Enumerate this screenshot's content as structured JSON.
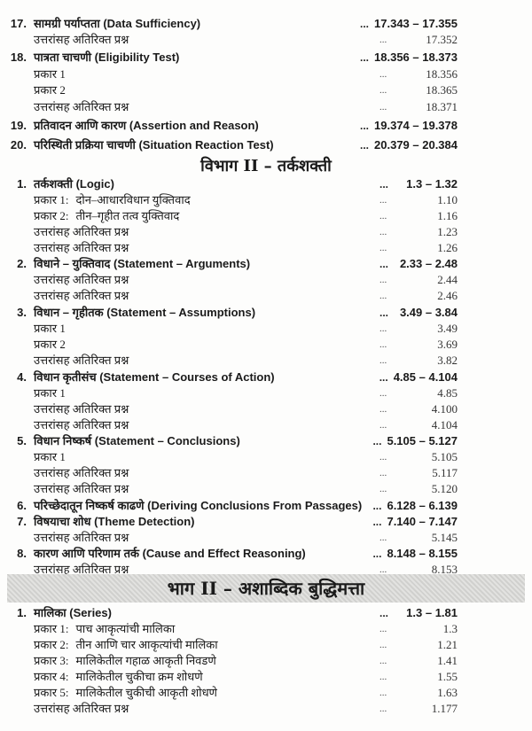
{
  "rows": [
    {
      "type": "main",
      "num": "17.",
      "title": "सामग्री पर्याप्तता (Data Sufficiency)",
      "dots": "...",
      "page": "17.343 – 17.355"
    },
    {
      "type": "sub",
      "title": "उत्तरांसह अतिरिक्त प्रश्न",
      "dots": "...",
      "page": "17.352"
    },
    {
      "type": "main",
      "num": "18.",
      "title": "पात्रता चाचणी (Eligibility Test)",
      "dots": "...",
      "page": "18.356 – 18.373"
    },
    {
      "type": "sub",
      "title": "प्रकार 1",
      "dots": "...",
      "page": "18.356"
    },
    {
      "type": "sub",
      "title": "प्रकार 2",
      "dots": "...",
      "page": "18.365"
    },
    {
      "type": "sub",
      "title": "उत्तरांसह अतिरिक्त प्रश्न",
      "dots": "...",
      "page": "18.371"
    },
    {
      "type": "main",
      "num": "19.",
      "title": "प्रतिवादन आणि कारण (Assertion and Reason)",
      "dots": "...",
      "page": "19.374 – 19.378"
    },
    {
      "type": "main",
      "num": "20.",
      "title": "परिस्थिती प्रक्रिया चाचणी (Situation Reaction Test)",
      "dots": "...",
      "page": "20.379 – 20.384"
    },
    {
      "type": "heading",
      "title": "विभाग II – तर्कशक्ती"
    },
    {
      "type": "main",
      "num": "1.",
      "title": "तर्कशक्ती (Logic)",
      "dots": "...",
      "page": "1.3 – 1.32"
    },
    {
      "type": "sub",
      "kind": "प्रकार 1:",
      "subtitle": "दोन–आधारविधान युक्तिवाद",
      "dots": "...",
      "page": "1.10"
    },
    {
      "type": "sub",
      "kind": "प्रकार 2:",
      "subtitle": "तीन–गृहीत तत्व युक्तिवाद",
      "dots": "...",
      "page": "1.16"
    },
    {
      "type": "sub",
      "title": "उत्तरांसह अतिरिक्त प्रश्न",
      "dots": "...",
      "page": "1.23"
    },
    {
      "type": "sub",
      "title": "उत्तरांसह अतिरिक्त प्रश्न",
      "dots": "...",
      "page": "1.26"
    },
    {
      "type": "main",
      "num": "2.",
      "title": "विधाने – युक्तिवाद (Statement – Arguments)",
      "dots": "...",
      "page": "2.33 – 2.48"
    },
    {
      "type": "sub",
      "title": "उत्तरांसह अतिरिक्त प्रश्न",
      "dots": "...",
      "page": "2.44"
    },
    {
      "type": "sub",
      "title": "उत्तरांसह अतिरिक्त प्रश्न",
      "dots": "...",
      "page": "2.46"
    },
    {
      "type": "main",
      "num": "3.",
      "title": "विधान – गृहीतक (Statement – Assumptions)",
      "dots": "...",
      "page": "3.49 – 3.84"
    },
    {
      "type": "sub",
      "title": "प्रकार 1",
      "dots": "...",
      "page": "3.49"
    },
    {
      "type": "sub",
      "title": "प्रकार 2",
      "dots": "...",
      "page": "3.69"
    },
    {
      "type": "sub",
      "title": "उत्तरांसह अतिरिक्त प्रश्न",
      "dots": "...",
      "page": "3.82"
    },
    {
      "type": "main",
      "num": "4.",
      "title": "विधान कृतीसंच (Statement – Courses of Action)",
      "dots": "...",
      "page": "4.85 – 4.104"
    },
    {
      "type": "sub",
      "title": "प्रकार 1",
      "dots": "...",
      "page": "4.85"
    },
    {
      "type": "sub",
      "title": "उत्तरांसह अतिरिक्त प्रश्न",
      "dots": "...",
      "page": "4.100"
    },
    {
      "type": "sub",
      "title": "उत्तरांसह अतिरिक्त प्रश्न",
      "dots": "...",
      "page": "4.104"
    },
    {
      "type": "main",
      "num": "5.",
      "title": "विधान निष्कर्ष (Statement –  Conclusions)",
      "dots": "...",
      "page": "5.105 – 5.127"
    },
    {
      "type": "sub",
      "title": "प्रकार 1",
      "dots": "...",
      "page": "5.105"
    },
    {
      "type": "sub",
      "title": "उत्तरांसह अतिरिक्त प्रश्न",
      "dots": "...",
      "page": "5.117"
    },
    {
      "type": "sub",
      "title": "उत्तरांसह अतिरिक्त प्रश्न",
      "dots": "...",
      "page": "5.120"
    },
    {
      "type": "main",
      "num": "6.",
      "title": "परिच्छेदातून निष्कर्ष काढणे (Deriving Conclusions From Passages)",
      "dots": "...",
      "page": "6.128 – 6.139"
    },
    {
      "type": "main",
      "num": "7.",
      "title": "विषयाचा शोध (Theme Detection)",
      "dots": "...",
      "page": "7.140 – 7.147"
    },
    {
      "type": "sub",
      "title": "उत्तरांसह अतिरिक्त प्रश्न",
      "dots": "...",
      "page": "5.145"
    },
    {
      "type": "main",
      "num": "8.",
      "title": "कारण आणि परिणाम तर्क (Cause and Effect Reasoning)",
      "dots": "...",
      "page": "8.148 – 8.155"
    },
    {
      "type": "sub",
      "title": "उत्तरांसह अतिरिक्त प्रश्न",
      "dots": "...",
      "page": "8.153"
    },
    {
      "type": "band",
      "title": "भाग II – अशाब्दिक बुद्धिमत्ता"
    },
    {
      "type": "main",
      "num": "1.",
      "title": "मालिका (Series)",
      "dots": "...",
      "page": "1.3 – 1.81"
    },
    {
      "type": "sub",
      "kind": "प्रकार 1:",
      "subtitle": "पाच आकृत्यांची मालिका",
      "dots": "...",
      "page": "1.3"
    },
    {
      "type": "sub",
      "kind": "प्रकार 2:",
      "subtitle": "तीन आणि चार आकृत्यांची मालिका",
      "dots": "...",
      "page": "1.21"
    },
    {
      "type": "sub",
      "kind": "प्रकार 3:",
      "subtitle": "मालिकेतील गहाळ आकृती निवडणे",
      "dots": "...",
      "page": "1.41"
    },
    {
      "type": "sub",
      "kind": "प्रकार 4:",
      "subtitle": "मालिकेतील चुकीचा क्रम शोधणे",
      "dots": "...",
      "page": "1.55"
    },
    {
      "type": "sub",
      "kind": "प्रकार 5:",
      "subtitle": "मालिकेतील चुकीची आकृती शोधणे",
      "dots": "...",
      "page": "1.63"
    },
    {
      "type": "sub",
      "title": "उत्तरांसह अतिरिक्त प्रश्न",
      "dots": "...",
      "page": "1.177"
    }
  ]
}
